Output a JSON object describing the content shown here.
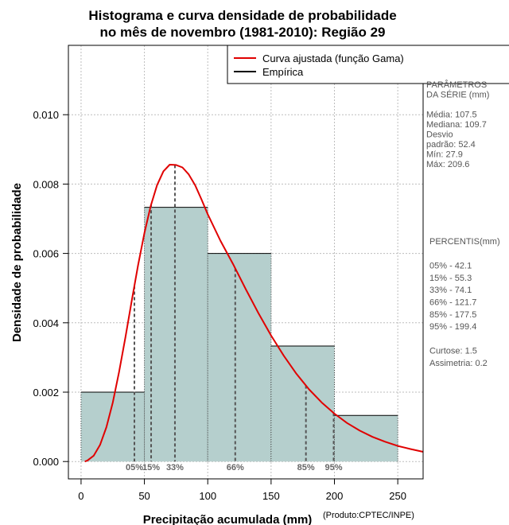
{
  "chart_data": {
    "type": "bar",
    "title_line1": "Histograma e curva densidade de probabilidade",
    "title_line2": "no mês de novembro (1981-2010): Região 29",
    "xlabel": "Precipitação acumulada (mm)",
    "ylabel": "Densidade de probabilidade",
    "credit": "(Produto:CPTEC/INPE)",
    "xlim": [
      -10,
      270
    ],
    "ylim": [
      -0.0005,
      0.012
    ],
    "x_ticks": [
      0,
      50,
      100,
      150,
      200,
      250
    ],
    "x_tick_labels": [
      "0",
      "50",
      "100",
      "150",
      "200",
      "250"
    ],
    "y_ticks": [
      0.0,
      0.002,
      0.004,
      0.006,
      0.008,
      0.01
    ],
    "y_tick_labels": [
      "0.000",
      "0.002",
      "0.004",
      "0.006",
      "0.008",
      "0.010"
    ],
    "grid": true,
    "bins": [
      {
        "start": 0,
        "end": 50,
        "density": 0.002
      },
      {
        "start": 50,
        "end": 100,
        "density": 0.00733
      },
      {
        "start": 100,
        "end": 150,
        "density": 0.006
      },
      {
        "start": 150,
        "end": 200,
        "density": 0.00333
      },
      {
        "start": 200,
        "end": 250,
        "density": 0.00133
      }
    ],
    "bar_color": "#b5cfcd",
    "curve_color": "#e00000",
    "curve": {
      "x": [
        3,
        5,
        10,
        15,
        20,
        25,
        30,
        35,
        40,
        45,
        50,
        55,
        60,
        65,
        70,
        75,
        80,
        85,
        90,
        95,
        100,
        110,
        120,
        130,
        140,
        150,
        160,
        170,
        180,
        190,
        200,
        210,
        220,
        230,
        240,
        250,
        260,
        270
      ],
      "y": [
        0.0,
        3e-05,
        0.00017,
        0.00048,
        0.00099,
        0.0017,
        0.00258,
        0.00358,
        0.00463,
        0.00566,
        0.00659,
        0.00737,
        0.00797,
        0.00837,
        0.00856,
        0.00855,
        0.00848,
        0.00828,
        0.00797,
        0.00756,
        0.00713,
        0.00637,
        0.00569,
        0.00497,
        0.00428,
        0.00363,
        0.00305,
        0.00253,
        0.00208,
        0.0017,
        0.00138,
        0.00111,
        0.00089,
        0.00071,
        0.00057,
        0.00045,
        0.00036,
        0.00028
      ]
    },
    "legend": [
      {
        "label": "Curva ajustada (função Gama)",
        "color": "#e00000"
      },
      {
        "label": "Empírica",
        "color": "#000000"
      }
    ],
    "percentile_lines": [
      {
        "x": 42.1,
        "label": "05%"
      },
      {
        "x": 55.3,
        "label": "15%"
      },
      {
        "x": 74.1,
        "label": "33%"
      },
      {
        "x": 121.7,
        "label": "66%"
      },
      {
        "x": 177.5,
        "label": "85%"
      },
      {
        "x": 199.4,
        "label": "95%"
      }
    ]
  },
  "side_panel": {
    "params_lines": [
      "PARÂMETROS",
      " DA SÉRIE (mm)",
      "",
      "Média:  107.5",
      "Mediana:  109.7",
      "Desvio",
      "padrão:  52.4",
      "Mín:  27.9",
      "Máx:  209.6"
    ],
    "percentis_lines": [
      " PERCENTIS(mm)",
      "",
      "05% -  42.1",
      "15% -  55.3",
      "33% -  74.1",
      "66% -  121.7",
      "85% -  177.5",
      "95% -  199.4",
      "",
      "Curtose:  1.5",
      "Assimetria:  0.2"
    ]
  }
}
